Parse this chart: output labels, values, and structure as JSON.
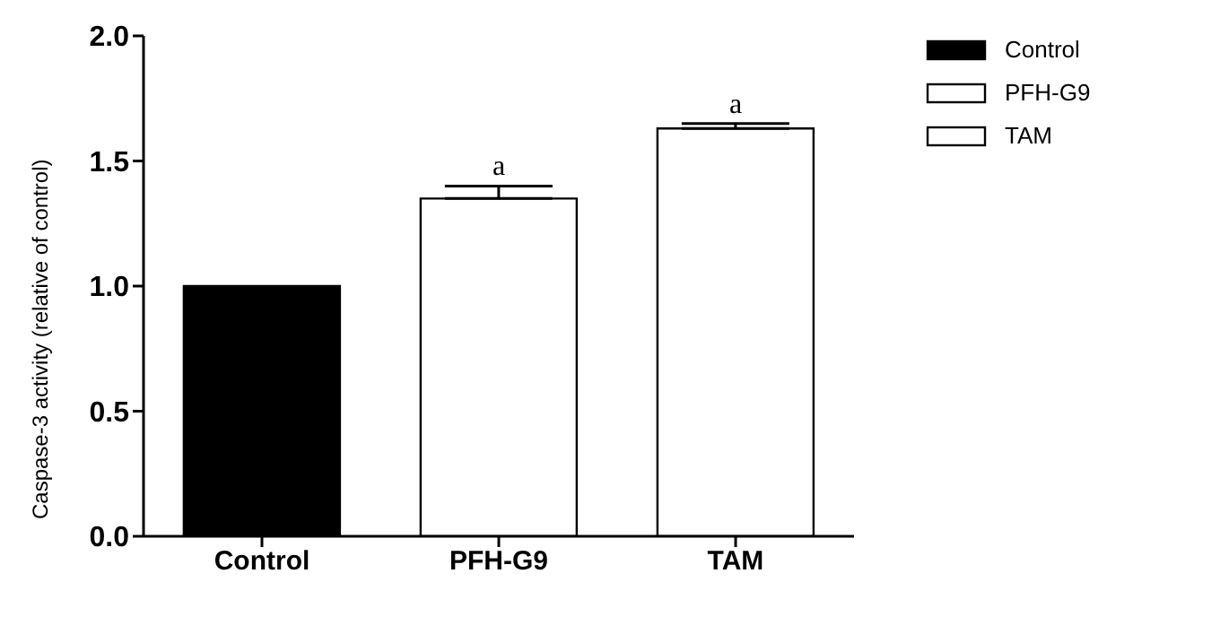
{
  "chart_data": {
    "type": "bar",
    "ylabel": "Caspase-3 activity (relative of control)",
    "categories": [
      "Control",
      "PFH-G9",
      "TAM"
    ],
    "stacked": true,
    "series": [
      {
        "name": "Control",
        "color": "#000000",
        "values": [
          1.0,
          null,
          null
        ],
        "errors": [
          null,
          null,
          null
        ]
      },
      {
        "name": "PFH-G9",
        "color": "#ffffff",
        "values": [
          null,
          1.35,
          null
        ],
        "errors": [
          null,
          [
            1.35,
            1.4
          ],
          null
        ]
      },
      {
        "name": "TAM",
        "color": "#ffffff",
        "values": [
          null,
          null,
          1.63
        ],
        "errors": [
          null,
          null,
          [
            1.63,
            1.65
          ]
        ]
      }
    ],
    "ylim": [
      0,
      2
    ],
    "yticks": [
      {
        "value": 0,
        "label": "0.0"
      },
      {
        "value": 0.5,
        "label": "0.5"
      },
      {
        "value": 1,
        "label": "1.0"
      },
      {
        "value": 1.5,
        "label": "1.5"
      },
      {
        "value": 2,
        "label": "2.0"
      }
    ],
    "grid": false,
    "legend": "top right",
    "annotations": [
      {
        "text": "a",
        "x": "PFH-G9",
        "y": 1.4
      },
      {
        "text": "a",
        "x": "TAM",
        "y": 1.65
      }
    ]
  }
}
